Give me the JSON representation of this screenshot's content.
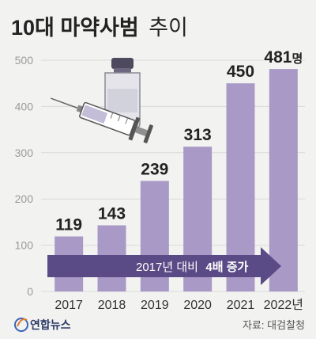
{
  "title": {
    "bold": "10대 마약사범",
    "light": "추이"
  },
  "chart_data": {
    "type": "bar",
    "categories": [
      "2017",
      "2018",
      "2019",
      "2020",
      "2021",
      "2022년"
    ],
    "values": [
      119,
      143,
      239,
      313,
      450,
      481
    ],
    "value_labels": [
      "119",
      "143",
      "239",
      "313",
      "450",
      "481"
    ],
    "value_unit": "명",
    "yticks": [
      0,
      100,
      200,
      300,
      400,
      500
    ],
    "ylim": [
      0,
      500
    ],
    "grid": true,
    "bar_color": "#a999c6",
    "annotation": {
      "prefix": "2017년 대비",
      "emphasis": "4배 증가"
    }
  },
  "brand": "연합뉴스",
  "source": "자료: 대검찰청",
  "colors": {
    "bar": "#a999c6",
    "arrow": "#5a4a86",
    "grid": "#d9d9d9",
    "background": "#f2f2f0"
  }
}
